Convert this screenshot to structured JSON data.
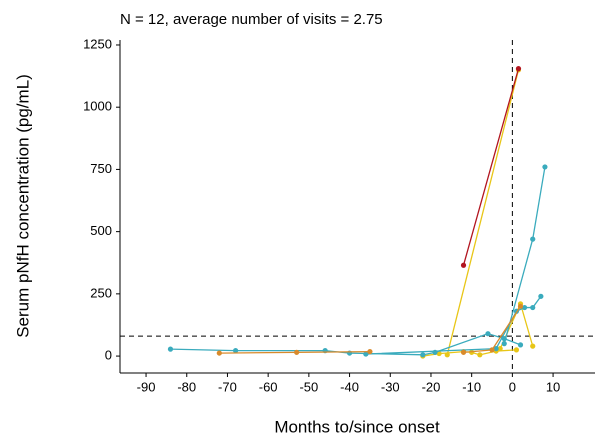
{
  "chart_data": {
    "type": "line",
    "title": "N = 12, average number of visits = 2.75",
    "x_label": "Months to/since onset",
    "y_label": "Serum pNfH concentration (pg/mL)",
    "xlim": [
      -96.4,
      20.3
    ],
    "ylim": [
      -68,
      1270
    ],
    "xticks": [
      -90,
      -80,
      -70,
      -60,
      -50,
      -40,
      -30,
      -20,
      -10,
      0,
      10
    ],
    "yticks": [
      0,
      250,
      500,
      750,
      1000,
      1250
    ],
    "hlines": [
      80
    ],
    "vlines": [
      0
    ],
    "series": [
      {
        "color": "#e8c617",
        "x": [
          -16,
          1.5
        ],
        "values": [
          5,
          1150
        ]
      },
      {
        "color": "#b2151f",
        "x": [
          -12,
          1.5
        ],
        "values": [
          365,
          1155
        ]
      },
      {
        "color": "#e8c617",
        "x": [
          -22,
          -18,
          -12,
          -10,
          -8,
          -4,
          1
        ],
        "values": [
          0,
          10,
          18,
          15,
          5,
          20,
          25
        ]
      },
      {
        "color": "#e8c617",
        "x": [
          -3,
          2,
          5
        ],
        "values": [
          30,
          210,
          40
        ]
      },
      {
        "color": "#3aabbd",
        "x": [
          -84,
          -68,
          -46,
          -40,
          -22,
          -19,
          -6,
          -2,
          2
        ],
        "values": [
          28,
          22,
          22,
          12,
          5,
          15,
          90,
          70,
          45
        ]
      },
      {
        "color": "#3aabbd",
        "x": [
          -36,
          -4,
          1,
          3,
          5,
          7
        ],
        "values": [
          8,
          30,
          180,
          195,
          195,
          240
        ]
      },
      {
        "color": "#3aabbd",
        "x": [
          -2,
          5,
          8
        ],
        "values": [
          50,
          470,
          760
        ]
      },
      {
        "color": "#d98a2b",
        "x": [
          -72,
          -53,
          -35
        ],
        "values": [
          12,
          15,
          18
        ]
      },
      {
        "color": "#d98a2b",
        "x": [
          -12,
          -5,
          2
        ],
        "values": [
          15,
          25,
          200
        ]
      }
    ]
  }
}
